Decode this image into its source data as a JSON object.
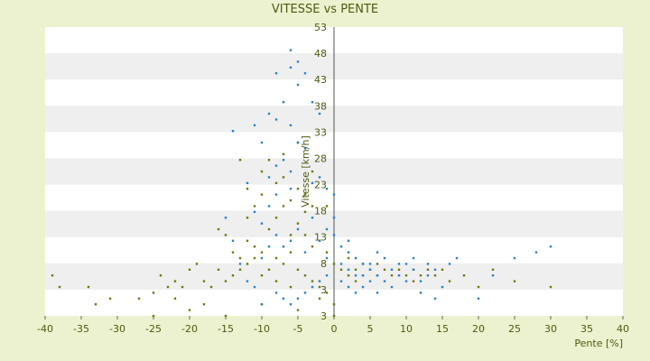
{
  "chart_data": {
    "type": "scatter",
    "title": "VITESSE vs PENTE",
    "xlabel": "Pente [%]",
    "ylabel": "Vitesse [km/h]",
    "xlim": [
      -40,
      40
    ],
    "ylim": [
      3,
      53
    ],
    "x_ticks": [
      "-40",
      "-35",
      "-30",
      "-25",
      "-20",
      "-15",
      "-10",
      "-5",
      "0",
      "5",
      "10",
      "15",
      "20",
      "25",
      "30",
      "35",
      "40"
    ],
    "y_ticks": [
      "3",
      "3",
      "8",
      "13",
      "18",
      "23",
      "28",
      "33",
      "38",
      "43",
      "48",
      "53"
    ],
    "grid": "horizontal alternating bands",
    "series": [
      {
        "color": "#6b7a10",
        "points": [
          [
            -39,
            10
          ],
          [
            -38,
            8
          ],
          [
            -34,
            8
          ],
          [
            -33,
            5
          ],
          [
            -31,
            6
          ],
          [
            -27,
            6
          ],
          [
            -25,
            7
          ],
          [
            -24,
            10
          ],
          [
            -23,
            8
          ],
          [
            -22,
            9
          ],
          [
            -21,
            8
          ],
          [
            -20,
            11
          ],
          [
            -19,
            12
          ],
          [
            -18,
            9
          ],
          [
            -17,
            8
          ],
          [
            -16,
            11
          ],
          [
            -15,
            9
          ],
          [
            -14,
            10
          ],
          [
            -13,
            11
          ],
          [
            -12,
            12
          ],
          [
            -11,
            13
          ],
          [
            -10,
            10
          ],
          [
            -9,
            11
          ],
          [
            -8,
            9
          ],
          [
            -7,
            12
          ],
          [
            -6,
            8
          ],
          [
            -5,
            11
          ],
          [
            -4,
            10
          ],
          [
            -3,
            9
          ],
          [
            -2,
            8
          ],
          [
            -1,
            7
          ],
          [
            0,
            5
          ],
          [
            -9,
            18
          ],
          [
            -8,
            20
          ],
          [
            -7,
            22
          ],
          [
            -6,
            17
          ],
          [
            -5,
            19
          ],
          [
            -4,
            21
          ],
          [
            -3,
            15
          ],
          [
            -2,
            16
          ],
          [
            -1,
            14
          ],
          [
            -12,
            20
          ],
          [
            -11,
            22
          ],
          [
            -10,
            24
          ],
          [
            -9,
            30
          ],
          [
            -8,
            26
          ],
          [
            -7,
            27
          ],
          [
            -6,
            23
          ],
          [
            -5,
            25
          ],
          [
            -4,
            24
          ],
          [
            -3,
            22
          ],
          [
            -12,
            16
          ],
          [
            -11,
            15
          ],
          [
            -10,
            14
          ],
          [
            -13,
            13
          ],
          [
            -14,
            14
          ],
          [
            1,
            11
          ],
          [
            2,
            10
          ],
          [
            3,
            11
          ],
          [
            4,
            10
          ],
          [
            5,
            11
          ],
          [
            6,
            12
          ],
          [
            7,
            11
          ],
          [
            8,
            10
          ],
          [
            9,
            11
          ],
          [
            10,
            10
          ],
          [
            11,
            9
          ],
          [
            12,
            10
          ],
          [
            13,
            11
          ],
          [
            14,
            10
          ],
          [
            15,
            11
          ],
          [
            16,
            9
          ],
          [
            18,
            10
          ],
          [
            20,
            8
          ],
          [
            22,
            11
          ],
          [
            25,
            9
          ],
          [
            30,
            8
          ],
          [
            2,
            13
          ],
          [
            4,
            12
          ],
          [
            -25,
            3
          ],
          [
            -20,
            4
          ],
          [
            -15,
            3
          ],
          [
            -10,
            5
          ],
          [
            -5,
            4
          ],
          [
            0,
            3
          ],
          [
            -2,
            6
          ],
          [
            -6,
            14
          ],
          [
            -4,
            17
          ],
          [
            -8,
            13
          ],
          [
            -18,
            5
          ],
          [
            -22,
            6
          ],
          [
            -16,
            18
          ],
          [
            -13,
            30
          ],
          [
            -15,
            17
          ],
          [
            -12,
            25
          ],
          [
            -10,
            28
          ],
          [
            -7,
            31
          ],
          [
            -5,
            33
          ],
          [
            -3,
            28
          ],
          [
            -1,
            22
          ],
          [
            0,
            12
          ],
          [
            3,
            9
          ],
          [
            6,
            10
          ],
          [
            11,
            11
          ]
        ]
      },
      {
        "color": "#2f7fd0",
        "points": [
          [
            -6,
            49
          ],
          [
            -5,
            47
          ],
          [
            -6,
            46
          ],
          [
            -8,
            45
          ],
          [
            -5,
            43
          ],
          [
            -4,
            45
          ],
          [
            -7,
            40
          ],
          [
            -8,
            37
          ],
          [
            -9,
            38
          ],
          [
            -11,
            36
          ],
          [
            -14,
            35
          ],
          [
            -6,
            36
          ],
          [
            -5,
            33
          ],
          [
            -4,
            32
          ],
          [
            -3,
            40
          ],
          [
            -2,
            38
          ],
          [
            -7,
            30
          ],
          [
            -6,
            28
          ],
          [
            -8,
            29
          ],
          [
            -9,
            27
          ],
          [
            -10,
            33
          ],
          [
            -3,
            26
          ],
          [
            -2,
            27
          ],
          [
            -1,
            25
          ],
          [
            0,
            24
          ],
          [
            -12,
            26
          ],
          [
            -11,
            21
          ],
          [
            -10,
            19
          ],
          [
            -9,
            22
          ],
          [
            -8,
            17
          ],
          [
            -7,
            15
          ],
          [
            -6,
            16
          ],
          [
            -5,
            18
          ],
          [
            -4,
            14
          ],
          [
            -3,
            20
          ],
          [
            -2,
            16
          ],
          [
            -1,
            13
          ],
          [
            0,
            17
          ],
          [
            1,
            12
          ],
          [
            2,
            11
          ],
          [
            3,
            10
          ],
          [
            4,
            12
          ],
          [
            5,
            11
          ],
          [
            6,
            10
          ],
          [
            7,
            9
          ],
          [
            8,
            11
          ],
          [
            9,
            10
          ],
          [
            10,
            12
          ],
          [
            11,
            11
          ],
          [
            12,
            9
          ],
          [
            13,
            10
          ],
          [
            14,
            11
          ],
          [
            15,
            8
          ],
          [
            16,
            12
          ],
          [
            17,
            13
          ],
          [
            20,
            6
          ],
          [
            22,
            10
          ],
          [
            25,
            13
          ],
          [
            28,
            14
          ],
          [
            30,
            15
          ],
          [
            2,
            14
          ],
          [
            3,
            13
          ],
          [
            4,
            10
          ],
          [
            5,
            12
          ],
          [
            1,
            9
          ],
          [
            2,
            8
          ],
          [
            3,
            7
          ],
          [
            4,
            8
          ],
          [
            5,
            9
          ],
          [
            6,
            7
          ],
          [
            -1,
            10
          ],
          [
            -2,
            9
          ],
          [
            -3,
            8
          ],
          [
            -4,
            7
          ],
          [
            -5,
            6
          ],
          [
            -6,
            5
          ],
          [
            -7,
            6
          ],
          [
            -8,
            7
          ],
          [
            -10,
            5
          ],
          [
            -11,
            8
          ],
          [
            -12,
            9
          ],
          [
            -13,
            12
          ],
          [
            -14,
            16
          ],
          [
            -15,
            20
          ],
          [
            1,
            15
          ],
          [
            2,
            16
          ],
          [
            0,
            20
          ],
          [
            -1,
            18
          ],
          [
            8,
            8
          ],
          [
            10,
            9
          ],
          [
            12,
            7
          ],
          [
            14,
            6
          ],
          [
            9,
            12
          ],
          [
            11,
            13
          ],
          [
            13,
            12
          ],
          [
            6,
            14
          ],
          [
            7,
            13
          ],
          [
            -9,
            15
          ],
          [
            -10,
            13
          ],
          [
            -8,
            24
          ],
          [
            -6,
            25
          ]
        ]
      }
    ]
  }
}
